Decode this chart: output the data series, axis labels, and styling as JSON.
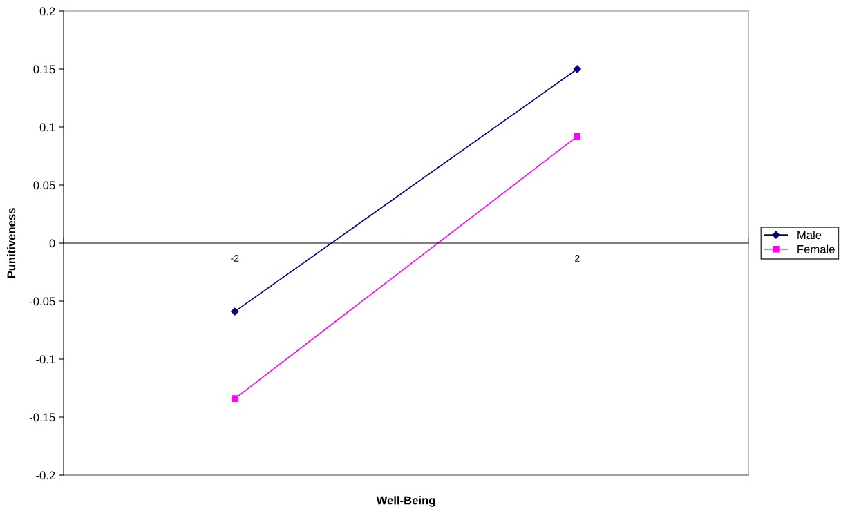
{
  "chart_data": {
    "type": "line",
    "xlabel": "Well-Being",
    "ylabel": "Punitiveness",
    "categories": [
      "-2",
      "2"
    ],
    "series": [
      {
        "name": "Male",
        "color": "#000080",
        "marker": "diamond",
        "values": [
          -0.059,
          0.15
        ]
      },
      {
        "name": "Female",
        "color": "#ff00ff",
        "marker": "square",
        "values": [
          -0.134,
          0.092
        ]
      }
    ],
    "ylim": [
      -0.2,
      0.2
    ],
    "yticks": [
      -0.2,
      -0.15,
      -0.1,
      -0.05,
      0,
      0.05,
      0.1,
      0.15,
      0.2
    ],
    "grid": false,
    "legend": "right",
    "line_style": "solid"
  }
}
